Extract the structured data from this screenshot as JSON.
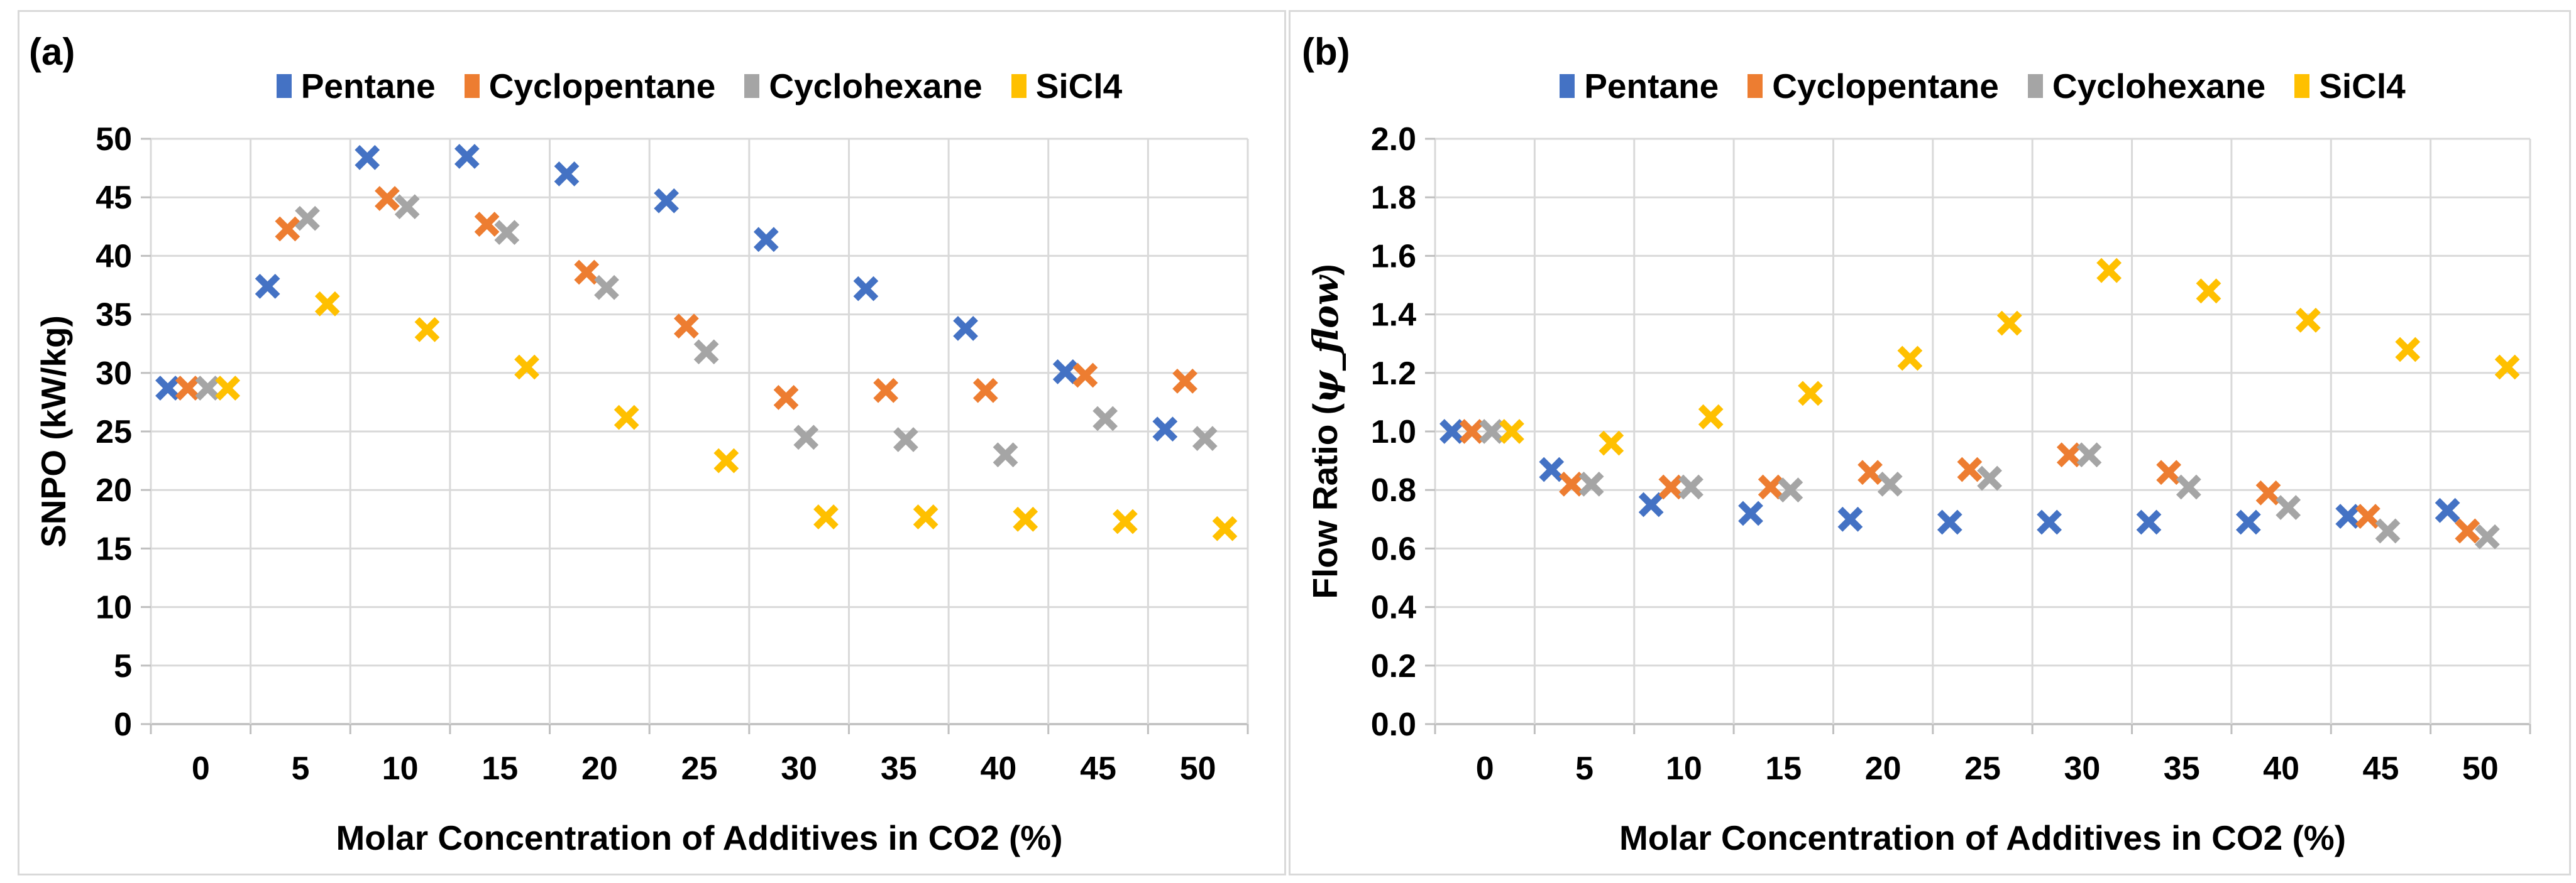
{
  "figure": {
    "background": "#ffffff",
    "panel_border_color": "#d9d9d9",
    "grid_color": "#d9d9d9",
    "axis_color": "#bfbfbf",
    "text_color": "#000000"
  },
  "legend": {
    "items": [
      {
        "label": "Pentane",
        "color": "#4472C4"
      },
      {
        "label": "Cyclopentane",
        "color": "#ED7D31"
      },
      {
        "label": "Cyclohexane",
        "color": "#A5A5A5"
      },
      {
        "label": "SiCl4",
        "color": "#FFC000"
      }
    ]
  },
  "chart_data": [
    {
      "type": "scatter",
      "panel_label": "(a)",
      "marker": "x",
      "grid": true,
      "legend_position": "top",
      "xlabel": "Molar Concentration of Additives in CO2 (%)",
      "ylabel": {
        "prefix": "SNPO (kW/kg)",
        "math": "",
        "suffix": ""
      },
      "x_categories": [
        0,
        5,
        10,
        15,
        20,
        25,
        30,
        35,
        40,
        45,
        50
      ],
      "ylim": [
        0,
        50
      ],
      "ytick_step": 5,
      "ytick_labels": [
        "0",
        "5",
        "10",
        "15",
        "20",
        "25",
        "30",
        "35",
        "40",
        "45",
        "50"
      ],
      "series": [
        {
          "name": "Pentane",
          "color": "#4472C4",
          "values": [
            28.7,
            37.4,
            48.4,
            48.5,
            47.0,
            44.7,
            41.4,
            37.2,
            33.8,
            30.1,
            25.2
          ]
        },
        {
          "name": "Cyclopentane",
          "color": "#ED7D31",
          "values": [
            28.7,
            42.3,
            44.9,
            42.7,
            38.6,
            34.0,
            27.9,
            28.5,
            28.5,
            29.8,
            29.3
          ]
        },
        {
          "name": "Cyclohexane",
          "color": "#A5A5A5",
          "values": [
            28.7,
            43.2,
            44.2,
            42.0,
            37.3,
            31.8,
            24.5,
            24.3,
            23.0,
            26.1,
            24.4
          ]
        },
        {
          "name": "SiCl4",
          "color": "#FFC000",
          "values": [
            28.7,
            35.9,
            33.7,
            30.5,
            26.2,
            22.5,
            17.7,
            17.7,
            17.5,
            17.3,
            16.7
          ]
        }
      ]
    },
    {
      "type": "scatter",
      "panel_label": "(b)",
      "marker": "x",
      "grid": true,
      "legend_position": "top",
      "xlabel": "Molar Concentration of Additives in CO2 (%)",
      "ylabel": {
        "prefix": "Flow Ratio (",
        "math": "ψ_flow",
        "suffix": ")"
      },
      "x_categories": [
        0,
        5,
        10,
        15,
        20,
        25,
        30,
        35,
        40,
        45,
        50
      ],
      "ylim": [
        0,
        2.0
      ],
      "ytick_step": 0.2,
      "ytick_labels": [
        "0.0",
        "0.2",
        "0.4",
        "0.6",
        "0.8",
        "1.0",
        "1.2",
        "1.4",
        "1.6",
        "1.8",
        "2.0"
      ],
      "series": [
        {
          "name": "Pentane",
          "color": "#4472C4",
          "values": [
            1.0,
            0.87,
            0.75,
            0.72,
            0.7,
            0.69,
            0.69,
            0.69,
            0.69,
            0.71,
            0.73
          ]
        },
        {
          "name": "Cyclopentane",
          "color": "#ED7D31",
          "values": [
            1.0,
            0.82,
            0.81,
            0.81,
            0.86,
            0.87,
            0.92,
            0.86,
            0.79,
            0.71,
            0.66
          ]
        },
        {
          "name": "Cyclohexane",
          "color": "#A5A5A5",
          "values": [
            1.0,
            0.82,
            0.81,
            0.8,
            0.82,
            0.84,
            0.92,
            0.81,
            0.74,
            0.66,
            0.64
          ]
        },
        {
          "name": "SiCl4",
          "color": "#FFC000",
          "values": [
            1.0,
            0.96,
            1.05,
            1.13,
            1.25,
            1.37,
            1.55,
            1.48,
            1.38,
            1.28,
            1.22
          ]
        }
      ]
    }
  ]
}
